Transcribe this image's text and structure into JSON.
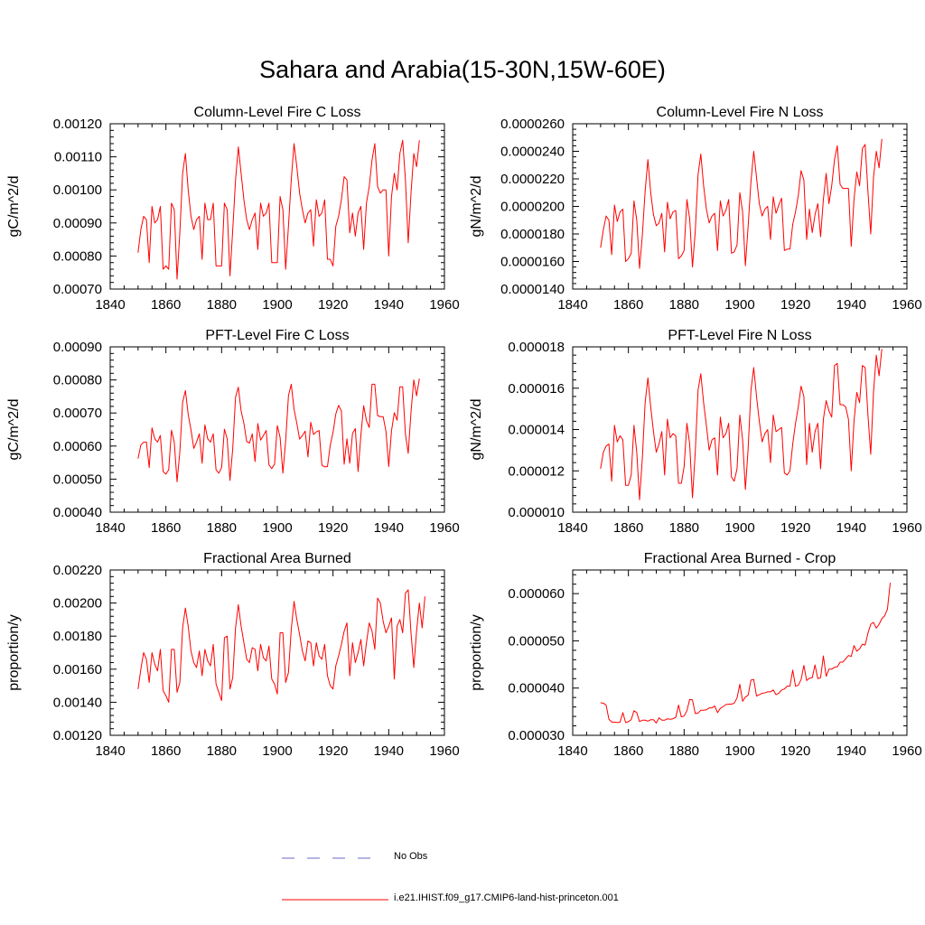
{
  "title": "Sahara and Arabia(15-30N,15W-60E)",
  "colors": {
    "model": "#ff0000",
    "obs": "#6a6acd",
    "axis": "#000000"
  },
  "legend": [
    {
      "label": "No Obs",
      "style": "dashed",
      "color": "#6a6acd"
    },
    {
      "label": "i.e21.IHIST.f09_g17.CMIP6-land-hist-princeton.001",
      "style": "solid",
      "color": "#ff0000"
    }
  ],
  "chart_data": [
    {
      "type": "line",
      "title": "Column-Level Fire C Loss",
      "ylabel": "gC/m^2/d",
      "xlim": [
        1840,
        1960
      ],
      "ylim": [
        0.0007,
        0.0012
      ],
      "xticks": [
        1840,
        1860,
        1880,
        1900,
        1920,
        1940,
        1960
      ],
      "yticks": [
        0.0007,
        0.0008,
        0.0009,
        0.001,
        0.0011,
        0.0012
      ],
      "yticklabels": [
        "0.00070",
        "0.00080",
        "0.00090",
        "0.00100",
        "0.00110",
        "0.00120"
      ],
      "x_start": 1850,
      "series": [
        {
          "values": [
            0.00081,
            0.00088,
            0.00092,
            0.00091,
            0.00078,
            0.00095,
            0.0009,
            0.00091,
            0.00095,
            0.00076,
            0.00077,
            0.00076,
            0.00096,
            0.00094,
            0.00073,
            0.00087,
            0.00105,
            0.00111,
            0.001,
            0.00092,
            0.00088,
            0.00091,
            0.00092,
            0.00079,
            0.00096,
            0.00091,
            0.00091,
            0.00096,
            0.00077,
            0.00077,
            0.00077,
            0.00096,
            0.00094,
            0.00074,
            0.00088,
            0.00103,
            0.00113,
            0.00105,
            0.00097,
            0.00091,
            0.00088,
            0.00091,
            0.00093,
            0.00082,
            0.00096,
            0.00092,
            0.00093,
            0.00096,
            0.00078,
            0.00078,
            0.00078,
            0.00098,
            0.00094,
            0.00076,
            0.00089,
            0.00103,
            0.00114,
            0.00107,
            0.00099,
            0.00094,
            0.0009,
            0.00093,
            0.00094,
            0.00083,
            0.00097,
            0.00092,
            0.00093,
            0.00097,
            0.00079,
            0.00079,
            0.00077,
            0.00089,
            0.00092,
            0.00097,
            0.00104,
            0.00103,
            0.00087,
            0.00093,
            0.00086,
            0.00093,
            0.00095,
            0.00082,
            0.00096,
            0.00101,
            0.00109,
            0.00114,
            0.00101,
            0.00099,
            0.001,
            0.001,
            0.0008,
            0.00098,
            0.00105,
            0.001,
            0.00111,
            0.00115,
            0.00103,
            0.00084,
            0.00099,
            0.00111,
            0.00107,
            0.00115
          ]
        }
      ]
    },
    {
      "type": "line",
      "title": "Column-Level Fire N Loss",
      "ylabel": "gN/m^2/d",
      "xlim": [
        1840,
        1960
      ],
      "ylim": [
        1.4e-05,
        2.6e-05
      ],
      "xticks": [
        1840,
        1860,
        1880,
        1900,
        1920,
        1940,
        1960
      ],
      "yticks": [
        1.4e-05,
        1.6e-05,
        1.8e-05,
        2e-05,
        2.2e-05,
        2.4e-05,
        2.6e-05
      ],
      "yticklabels": [
        "0.0000140",
        "0.0000160",
        "0.0000180",
        "0.0000200",
        "0.0000220",
        "0.0000240",
        "0.0000260"
      ],
      "x_start": 1850,
      "series": [
        {
          "values": [
            1.7e-05,
            1.83e-05,
            1.93e-05,
            1.9e-05,
            1.65e-05,
            2.01e-05,
            1.89e-05,
            1.96e-05,
            1.98e-05,
            1.6e-05,
            1.62e-05,
            1.66e-05,
            2.04e-05,
            1.9e-05,
            1.55e-05,
            1.79e-05,
            2.11e-05,
            2.34e-05,
            2.1e-05,
            1.94e-05,
            1.86e-05,
            1.88e-05,
            1.95e-05,
            1.67e-05,
            2.03e-05,
            1.91e-05,
            1.96e-05,
            1.97e-05,
            1.62e-05,
            1.64e-05,
            1.68e-05,
            2.05e-05,
            1.91e-05,
            1.56e-05,
            1.82e-05,
            2.23e-05,
            2.38e-05,
            2.15e-05,
            1.98e-05,
            1.88e-05,
            1.93e-05,
            1.95e-05,
            1.68e-05,
            2.04e-05,
            1.93e-05,
            1.97e-05,
            2.05e-05,
            1.66e-05,
            1.67e-05,
            1.72e-05,
            2.1e-05,
            1.96e-05,
            1.57e-05,
            1.86e-05,
            2.18e-05,
            2.4e-05,
            2.21e-05,
            2.02e-05,
            1.93e-05,
            1.98e-05,
            2e-05,
            1.76e-05,
            2.07e-05,
            1.95e-05,
            2.01e-05,
            2.06e-05,
            1.68e-05,
            1.69e-05,
            1.69e-05,
            1.87e-05,
            1.96e-05,
            2.08e-05,
            2.26e-05,
            2.19e-05,
            1.76e-05,
            1.98e-05,
            1.81e-05,
            1.94e-05,
            2.02e-05,
            1.78e-05,
            2.05e-05,
            2.24e-05,
            2.02e-05,
            2.15e-05,
            2.34e-05,
            2.44e-05,
            2.16e-05,
            2.13e-05,
            2.13e-05,
            2.13e-05,
            1.71e-05,
            2.05e-05,
            2.25e-05,
            2.15e-05,
            2.42e-05,
            2.45e-05,
            2.11e-05,
            1.8e-05,
            2.21e-05,
            2.4e-05,
            2.28e-05,
            2.49e-05
          ]
        }
      ]
    },
    {
      "type": "line",
      "title": "PFT-Level Fire C Loss",
      "ylabel": "gC/m^2/d",
      "xlim": [
        1840,
        1960
      ],
      "ylim": [
        0.0004,
        0.0009
      ],
      "xticks": [
        1840,
        1860,
        1880,
        1900,
        1920,
        1940,
        1960
      ],
      "yticks": [
        0.0004,
        0.0005,
        0.0006,
        0.0007,
        0.0008,
        0.0009
      ],
      "yticklabels": [
        "0.00040",
        "0.00050",
        "0.00060",
        "0.00070",
        "0.00080",
        "0.00090"
      ],
      "x_start": 1850,
      "series": [
        {
          "values": [
            0.000562,
            0.000603,
            0.000612,
            0.000612,
            0.000535,
            0.000655,
            0.000622,
            0.000612,
            0.000632,
            0.000523,
            0.000515,
            0.000528,
            0.000648,
            0.000612,
            0.000492,
            0.000582,
            0.000732,
            0.000768,
            0.000696,
            0.000649,
            0.000593,
            0.000612,
            0.000637,
            0.000548,
            0.000664,
            0.000622,
            0.000612,
            0.000637,
            0.000528,
            0.000518,
            0.000535,
            0.000651,
            0.000622,
            0.000496,
            0.000593,
            0.000748,
            0.000778,
            0.000706,
            0.000669,
            0.000614,
            0.000609,
            0.000637,
            0.000553,
            0.000668,
            0.000618,
            0.000632,
            0.000647,
            0.000543,
            0.000532,
            0.000545,
            0.000662,
            0.000626,
            0.000518,
            0.000617,
            0.000752,
            0.000787,
            0.000712,
            0.000669,
            0.000621,
            0.000632,
            0.000645,
            0.000567,
            0.000672,
            0.000635,
            0.000643,
            0.000647,
            0.000542,
            0.000537,
            0.000538,
            0.000602,
            0.000641,
            0.000697,
            0.000723,
            0.000706,
            0.000545,
            0.000622,
            0.000548,
            0.000638,
            0.000653,
            0.000523,
            0.000632,
            0.000722,
            0.000677,
            0.000656,
            0.000787,
            0.000787,
            0.000692,
            0.000689,
            0.000689,
            0.000645,
            0.000538,
            0.000646,
            0.000701,
            0.000678,
            0.000779,
            0.000779,
            0.000636,
            0.000578,
            0.000703,
            0.0008,
            0.000752,
            0.000804
          ]
        }
      ]
    },
    {
      "type": "line",
      "title": "PFT-Level Fire N Loss",
      "ylabel": "gN/m^2/d",
      "xlim": [
        1840,
        1960
      ],
      "ylim": [
        1e-05,
        1.8e-05
      ],
      "xticks": [
        1840,
        1860,
        1880,
        1900,
        1920,
        1940,
        1960
      ],
      "yticks": [
        1e-05,
        1.2e-05,
        1.4e-05,
        1.6e-05,
        1.8e-05
      ],
      "yticklabels": [
        "0.000010",
        "0.000012",
        "0.000014",
        "0.000016",
        "0.000018"
      ],
      "x_start": 1850,
      "series": [
        {
          "values": [
            1.21e-05,
            1.29e-05,
            1.32e-05,
            1.33e-05,
            1.15e-05,
            1.42e-05,
            1.34e-05,
            1.37e-05,
            1.35e-05,
            1.13e-05,
            1.13e-05,
            1.18e-05,
            1.42e-05,
            1.29e-05,
            1.06e-05,
            1.26e-05,
            1.53e-05,
            1.65e-05,
            1.51e-05,
            1.39e-05,
            1.29e-05,
            1.33e-05,
            1.39e-05,
            1.18e-05,
            1.45e-05,
            1.36e-05,
            1.38e-05,
            1.37e-05,
            1.14e-05,
            1.14e-05,
            1.22e-05,
            1.43e-05,
            1.33e-05,
            1.07e-05,
            1.29e-05,
            1.59e-05,
            1.67e-05,
            1.53e-05,
            1.42e-05,
            1.3e-05,
            1.35e-05,
            1.36e-05,
            1.18e-05,
            1.46e-05,
            1.36e-05,
            1.38e-05,
            1.43e-05,
            1.17e-05,
            1.15e-05,
            1.21e-05,
            1.47e-05,
            1.35e-05,
            1.11e-05,
            1.31e-05,
            1.59e-05,
            1.7e-05,
            1.56e-05,
            1.44e-05,
            1.34e-05,
            1.38e-05,
            1.4e-05,
            1.24e-05,
            1.47e-05,
            1.39e-05,
            1.4e-05,
            1.41e-05,
            1.19e-05,
            1.18e-05,
            1.2e-05,
            1.33e-05,
            1.43e-05,
            1.51e-05,
            1.61e-05,
            1.56e-05,
            1.23e-05,
            1.43e-05,
            1.29e-05,
            1.39e-05,
            1.43e-05,
            1.21e-05,
            1.45e-05,
            1.54e-05,
            1.49e-05,
            1.46e-05,
            1.71e-05,
            1.72e-05,
            1.52e-05,
            1.52e-05,
            1.51e-05,
            1.45e-05,
            1.2e-05,
            1.44e-05,
            1.58e-05,
            1.53e-05,
            1.71e-05,
            1.7e-05,
            1.47e-05,
            1.28e-05,
            1.58e-05,
            1.76e-05,
            1.66e-05,
            1.79e-05
          ]
        }
      ]
    },
    {
      "type": "line",
      "title": "Fractional Area Burned",
      "ylabel": "proportion/y",
      "xlim": [
        1840,
        1960
      ],
      "ylim": [
        0.0012,
        0.0022
      ],
      "xticks": [
        1840,
        1860,
        1880,
        1900,
        1920,
        1940,
        1960
      ],
      "yticks": [
        0.0012,
        0.0014,
        0.0016,
        0.0018,
        0.002,
        0.0022
      ],
      "yticklabels": [
        "0.00120",
        "0.00140",
        "0.00160",
        "0.00180",
        "0.00200",
        "0.00220"
      ],
      "x_start": 1850,
      "series": [
        {
          "values": [
            0.00148,
            0.0016,
            0.0017,
            0.00166,
            0.00152,
            0.0017,
            0.00163,
            0.00159,
            0.00172,
            0.00147,
            0.00144,
            0.0014,
            0.00172,
            0.00172,
            0.00146,
            0.00152,
            0.00185,
            0.00197,
            0.00186,
            0.00171,
            0.00164,
            0.00161,
            0.00171,
            0.00156,
            0.00172,
            0.00165,
            0.00162,
            0.00175,
            0.00151,
            0.00146,
            0.00141,
            0.00179,
            0.0018,
            0.00148,
            0.00155,
            0.00185,
            0.00199,
            0.00186,
            0.00176,
            0.00166,
            0.00164,
            0.00173,
            0.00172,
            0.00159,
            0.00175,
            0.00167,
            0.00165,
            0.00174,
            0.00154,
            0.00151,
            0.00145,
            0.00182,
            0.00182,
            0.00152,
            0.00158,
            0.00184,
            0.00201,
            0.0019,
            0.00181,
            0.00171,
            0.00165,
            0.00177,
            0.00176,
            0.00162,
            0.00176,
            0.00168,
            0.00166,
            0.00175,
            0.00156,
            0.0015,
            0.00148,
            0.00162,
            0.00168,
            0.00175,
            0.00183,
            0.00188,
            0.00156,
            0.00176,
            0.00164,
            0.0017,
            0.00178,
            0.00162,
            0.00176,
            0.00188,
            0.00183,
            0.00172,
            0.00203,
            0.002,
            0.00189,
            0.00182,
            0.00186,
            0.00191,
            0.00154,
            0.00186,
            0.0019,
            0.00182,
            0.00206,
            0.00208,
            0.00182,
            0.00161,
            0.00183,
            0.002,
            0.00185,
            0.00204
          ]
        }
      ]
    },
    {
      "type": "line",
      "title": "Fractional Area Burned - Crop",
      "ylabel": "proportion/y",
      "xlim": [
        1840,
        1960
      ],
      "ylim": [
        3e-05,
        6.5e-05
      ],
      "xticks": [
        1840,
        1860,
        1880,
        1900,
        1920,
        1940,
        1960
      ],
      "yticks": [
        3e-05,
        4e-05,
        5e-05,
        6e-05
      ],
      "yticklabels": [
        "0.000030",
        "0.000040",
        "0.000050",
        "0.000060"
      ],
      "x_start": 1850,
      "series": [
        {
          "values": [
            3.69e-05,
            3.68e-05,
            3.64e-05,
            3.34e-05,
            3.28e-05,
            3.28e-05,
            3.27e-05,
            3.28e-05,
            3.48e-05,
            3.27e-05,
            3.29e-05,
            3.33e-05,
            3.52e-05,
            3.48e-05,
            3.29e-05,
            3.32e-05,
            3.32e-05,
            3.3e-05,
            3.33e-05,
            3.33e-05,
            3.26e-05,
            3.37e-05,
            3.32e-05,
            3.32e-05,
            3.35e-05,
            3.34e-05,
            3.35e-05,
            3.38e-05,
            3.64e-05,
            3.39e-05,
            3.41e-05,
            3.52e-05,
            3.76e-05,
            3.75e-05,
            3.46e-05,
            3.47e-05,
            3.53e-05,
            3.53e-05,
            3.54e-05,
            3.58e-05,
            3.58e-05,
            3.62e-05,
            3.48e-05,
            3.57e-05,
            3.61e-05,
            3.65e-05,
            3.66e-05,
            3.66e-05,
            3.68e-05,
            3.79e-05,
            4.08e-05,
            3.72e-05,
            3.81e-05,
            3.85e-05,
            4.17e-05,
            4.18e-05,
            3.83e-05,
            3.86e-05,
            3.89e-05,
            3.9e-05,
            3.92e-05,
            3.92e-05,
            3.96e-05,
            3.86e-05,
            3.89e-05,
            3.96e-05,
            3.98e-05,
            4.04e-05,
            4.04e-05,
            4.38e-05,
            4.04e-05,
            4.06e-05,
            4.18e-05,
            4.48e-05,
            4.16e-05,
            4.21e-05,
            4.22e-05,
            4.49e-05,
            4.2e-05,
            4.22e-05,
            4.68e-05,
            4.25e-05,
            4.4e-05,
            4.4e-05,
            4.44e-05,
            4.45e-05,
            4.55e-05,
            4.55e-05,
            4.62e-05,
            4.69e-05,
            4.67e-05,
            4.9e-05,
            4.78e-05,
            4.83e-05,
            4.93e-05,
            4.91e-05,
            5.16e-05,
            5.35e-05,
            5.39e-05,
            5.27e-05,
            5.35e-05,
            5.47e-05,
            5.53e-05,
            5.67e-05,
            6.23e-05
          ]
        }
      ]
    }
  ]
}
